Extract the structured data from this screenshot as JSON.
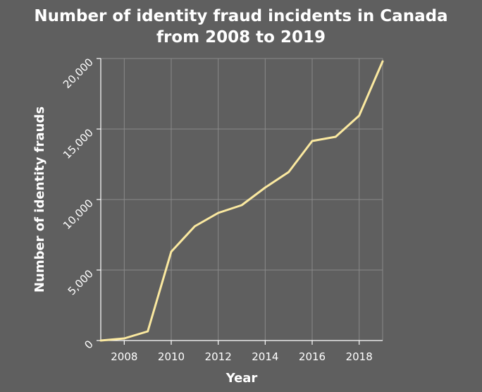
{
  "chart_data": {
    "type": "line",
    "title_lines": [
      "Number of identity fraud incidents in Canada",
      "from 2008 to 2019"
    ],
    "xlabel": "Year",
    "ylabel": "Number of identity frauds",
    "xlim": [
      2007,
      2019
    ],
    "ylim": [
      0,
      20000
    ],
    "x_ticks": [
      2008,
      2010,
      2012,
      2014,
      2016,
      2018
    ],
    "x_tick_labels": [
      "2008",
      "2010",
      "2012",
      "2014",
      "2016",
      "2018"
    ],
    "y_ticks": [
      0,
      5000,
      10000,
      15000,
      20000
    ],
    "y_tick_labels": [
      "0",
      "5,000",
      "10,000",
      "15,000",
      "20,000"
    ],
    "grid": true,
    "x": [
      2008,
      2009,
      2010,
      2011,
      2012,
      2013,
      2014,
      2015,
      2016,
      2017,
      2018,
      2019
    ],
    "series": [
      {
        "values": [
          150,
          650,
          6300,
          8100,
          9050,
          9600,
          10850,
          11950,
          14150,
          14450,
          15950,
          19800
        ],
        "color": "#fbe9a0"
      }
    ]
  }
}
